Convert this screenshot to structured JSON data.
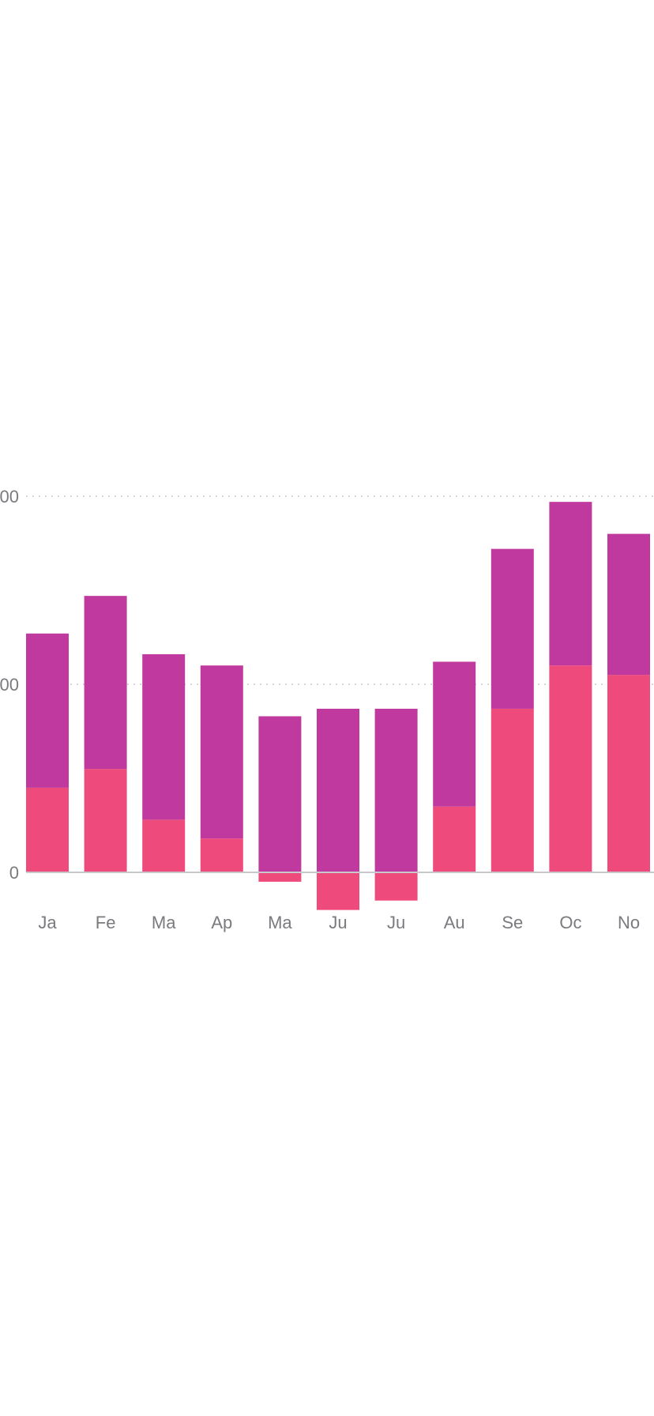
{
  "chart_data": {
    "type": "bar",
    "stacked": true,
    "categories": [
      "Ja",
      "Fe",
      "Ma",
      "Ap",
      "Ma",
      "Ju",
      "Ju",
      "Au",
      "Se",
      "Oc",
      "No"
    ],
    "series": [
      {
        "color": "#EE4B7C",
        "values": [
          45,
          55,
          28,
          18,
          -5,
          -20,
          -15,
          35,
          87,
          110,
          105
        ]
      },
      {
        "color": "#C0399E",
        "values": [
          82,
          92,
          88,
          92,
          83,
          87,
          87,
          77,
          85,
          87,
          75
        ]
      }
    ],
    "y_tick_labels": [
      "0",
      "00",
      "00"
    ],
    "y_tick_values": [
      0,
      100,
      200
    ],
    "ylim": [
      -25,
      200
    ],
    "grid": true
  }
}
